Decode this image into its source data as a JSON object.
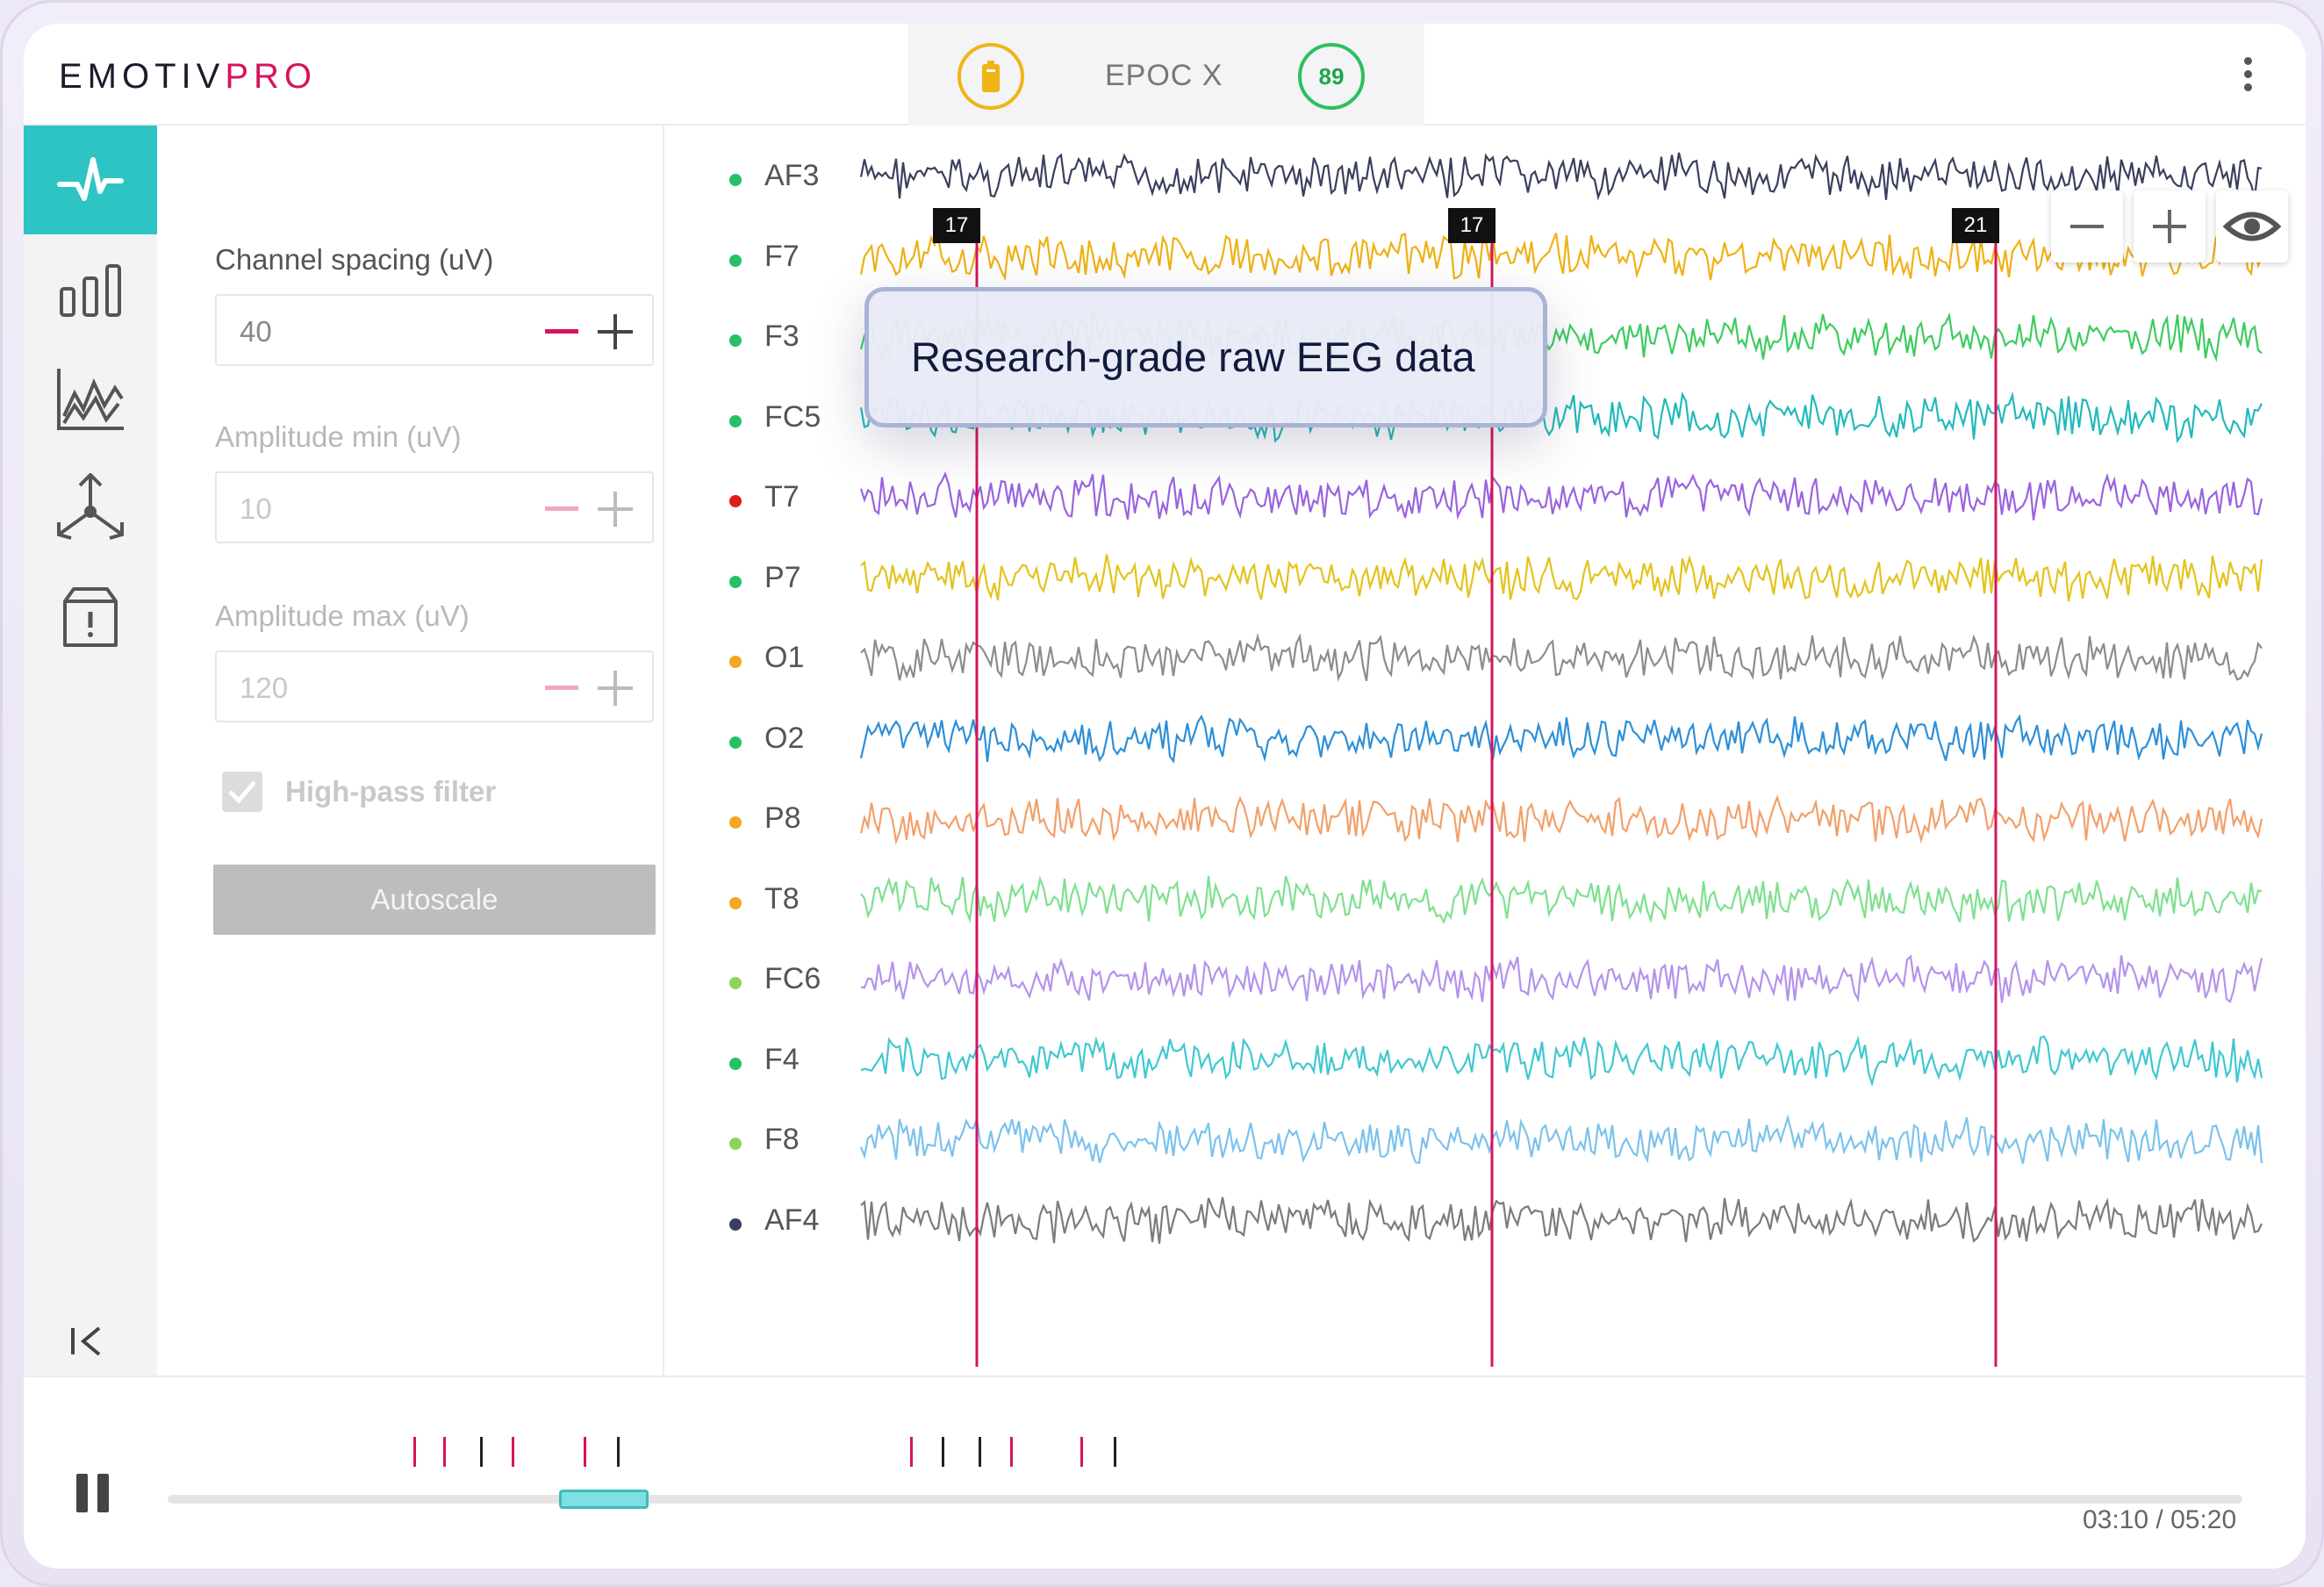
{
  "header": {
    "logo_main": "EMOTIV",
    "logo_accent": "PRO",
    "device_name": "EPOC X",
    "signal_quality": "89",
    "battery_icon": "battery-icon",
    "menu_icon": "kebab-menu-icon"
  },
  "sidebar": {
    "items": [
      {
        "icon": "waveform-icon",
        "active": true
      },
      {
        "icon": "bar-chart-icon",
        "active": false
      },
      {
        "icon": "line-chart-icon",
        "active": false
      },
      {
        "icon": "network-icon",
        "active": false
      },
      {
        "icon": "alert-box-icon",
        "active": false
      }
    ],
    "collapse_icon": "collapse-left-icon"
  },
  "settings": {
    "channel_spacing": {
      "label": "Channel spacing (uV)",
      "value": "40"
    },
    "amplitude_min": {
      "label": "Amplitude min (uV)",
      "value": "10"
    },
    "amplitude_max": {
      "label": "Amplitude max (uV)",
      "value": "120"
    },
    "high_pass": {
      "label": "High-pass filter",
      "checked": true
    },
    "autoscale_label": "Autoscale"
  },
  "chart": {
    "tooltip": "Research-grade raw EEG data",
    "markers": [
      "17",
      "17",
      "21"
    ],
    "channels": [
      {
        "name": "AF3",
        "dot": "#27c06a",
        "color": "#3a3f5c"
      },
      {
        "name": "F7",
        "dot": "#27c06a",
        "color": "#efb114"
      },
      {
        "name": "F3",
        "dot": "#27c06a",
        "color": "#3dcc5e"
      },
      {
        "name": "FC5",
        "dot": "#27c06a",
        "color": "#22b9bb"
      },
      {
        "name": "T7",
        "dot": "#e01b1b",
        "color": "#9a63e0"
      },
      {
        "name": "P7",
        "dot": "#27c06a",
        "color": "#e3c31b"
      },
      {
        "name": "O1",
        "dot": "#f5a623",
        "color": "#8c8c8c"
      },
      {
        "name": "O2",
        "dot": "#27c06a",
        "color": "#2c8fd8"
      },
      {
        "name": "P8",
        "dot": "#f5a623",
        "color": "#f2a06a"
      },
      {
        "name": "T8",
        "dot": "#f5a623",
        "color": "#7ee08e"
      },
      {
        "name": "FC6",
        "dot": "#8fd45a",
        "color": "#b592ec"
      },
      {
        "name": "F4",
        "dot": "#27c06a",
        "color": "#3fc8d0"
      },
      {
        "name": "F8",
        "dot": "#8fd45a",
        "color": "#7cc2ec"
      },
      {
        "name": "AF4",
        "dot": "#3a3f5c",
        "color": "#7b7b7b"
      }
    ],
    "toolbar_icons": [
      "zoom-out-icon",
      "zoom-in-icon",
      "eye-icon"
    ]
  },
  "playback": {
    "current_time": "03:10 / 05:20",
    "pause_icon": "pause-icon"
  }
}
